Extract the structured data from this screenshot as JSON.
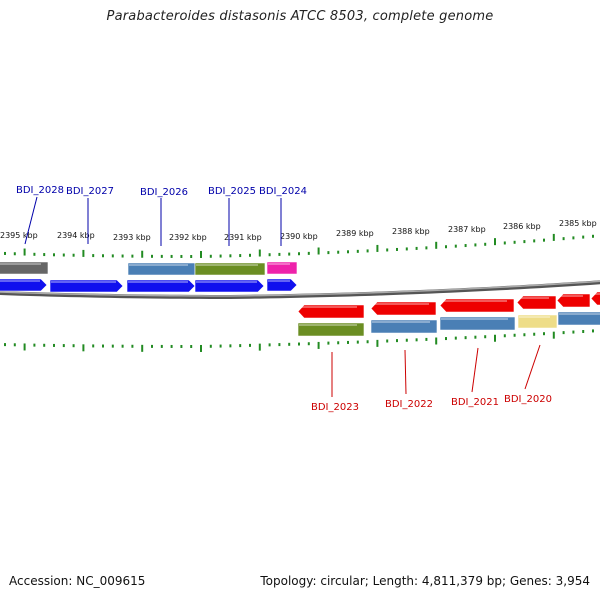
{
  "title": "Parabacteroides distasonis ATCC 8503, complete genome",
  "footer": {
    "accession": "Accession: NC_009615",
    "summary": "Topology: circular; Length: 4,811,379 bp; Genes: 3,954"
  },
  "scale_labels": [
    "2395 kbp",
    "2394 kbp",
    "2393 kbp",
    "2392 kbp",
    "2391 kbp",
    "2390 kbp",
    "2389 kbp",
    "2388 kbp",
    "2387 kbp",
    "2386 kbp",
    "2385 kbp"
  ],
  "genes_top": [
    "BDI_2028",
    "BDI_2027",
    "BDI_2026",
    "BDI_2025",
    "BDI_2024"
  ],
  "genes_bottom": [
    "BDI_2023",
    "BDI_2022",
    "BDI_2021",
    "BDI_2020"
  ],
  "colors": {
    "forward_cds": "#1010ee",
    "reverse_cds": "#ee0000",
    "cog_blue": "#4a7fb5",
    "cog_green": "#6b8e23",
    "cog_magenta": "#ee22aa",
    "cog_gray": "#666666",
    "cog_yellow": "#eedd88",
    "tick": "#228b22",
    "backbone": "#888888",
    "top_label": "#0000aa",
    "bottom_label": "#cc0000"
  }
}
